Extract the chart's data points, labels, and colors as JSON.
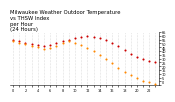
{
  "title": "Milwaukee Weather Outdoor Temperature\nvs THSW Index\nper Hour\n(24 Hours)",
  "temp": [
    55,
    53,
    51,
    49,
    48,
    47,
    48,
    50,
    53,
    55,
    57,
    59,
    60,
    59,
    57,
    54,
    50,
    46,
    41,
    36,
    32,
    29,
    27,
    25
  ],
  "thsw": [
    53,
    51,
    49,
    47,
    45,
    43,
    44,
    47,
    51,
    53,
    50,
    48,
    44,
    40,
    35,
    30,
    24,
    18,
    13,
    8,
    4,
    1,
    -1,
    -3
  ],
  "hours": [
    0,
    1,
    2,
    3,
    4,
    5,
    6,
    7,
    8,
    9,
    10,
    11,
    12,
    13,
    14,
    15,
    16,
    17,
    18,
    19,
    20,
    21,
    22,
    23
  ],
  "temp_color": "#cc0000",
  "thsw_color": "#ff8800",
  "bg_color": "#ffffff",
  "grid_color": "#c0c0c0",
  "ylim_min": -5,
  "ylim_max": 65,
  "ytick_values": [
    65,
    60,
    55,
    50,
    45,
    40,
    35,
    30,
    25,
    20,
    15,
    10,
    5,
    0,
    -5
  ],
  "ytick_labels": [
    "65",
    "60",
    "55",
    "50",
    "45",
    "40",
    "35",
    "30",
    "25",
    "20",
    "15",
    "10",
    "5",
    "0",
    ""
  ],
  "title_fontsize": 3.8,
  "marker_size": 1.5
}
